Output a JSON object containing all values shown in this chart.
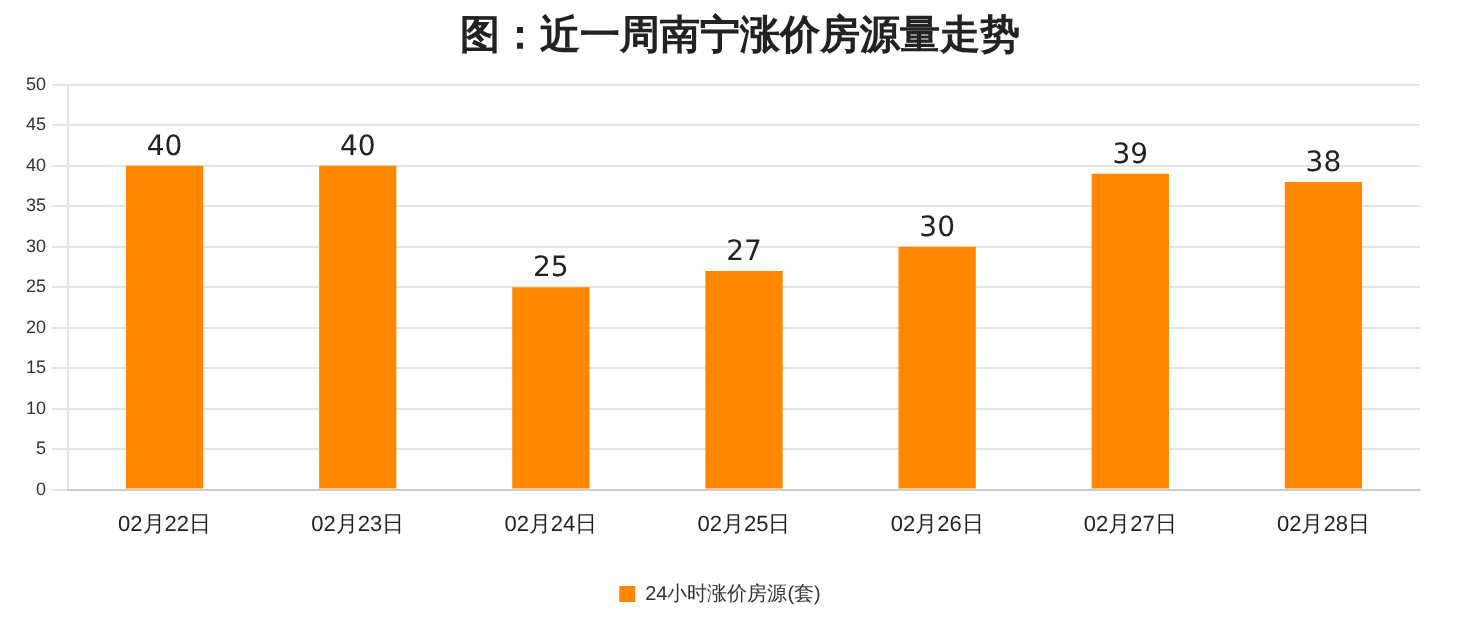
{
  "chart_data": {
    "type": "bar",
    "title": "图：近一周南宁涨价房源量走势",
    "categories": [
      "02月22日",
      "02月23日",
      "02月24日",
      "02月25日",
      "02月26日",
      "02月27日",
      "02月28日"
    ],
    "series": [
      {
        "name": "24小时涨价房源(套)",
        "color": "#ff8800",
        "values": [
          40,
          40,
          25,
          27,
          30,
          39,
          38
        ]
      }
    ],
    "ylim": [
      0,
      50
    ],
    "yticks": [
      0,
      5,
      10,
      15,
      20,
      25,
      30,
      35,
      40,
      45,
      50
    ],
    "grid": "y",
    "legend": "bottom",
    "data_labels": true
  }
}
